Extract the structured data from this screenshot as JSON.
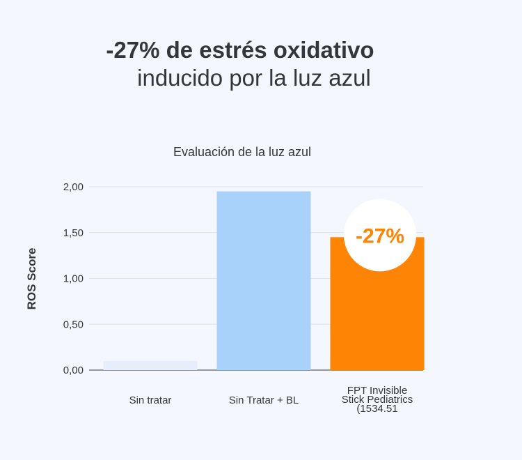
{
  "headline": {
    "line1": "-27% de estrés oxidativo",
    "line2": "inducido por la luz azul"
  },
  "colors": {
    "background": "#f4f7fd",
    "bar_untreated": "#e6eefb",
    "bar_bl": "#a9d2fb",
    "bar_product": "#fd8405",
    "badge_bg": "#ffffff"
  },
  "chart_data": {
    "type": "bar",
    "title": "Evaluación de la luz azul",
    "ylabel": "ROS Score",
    "xlabel": "",
    "ylim": [
      0,
      2
    ],
    "yticks": [
      "0,00",
      "0,50",
      "1,00",
      "1,50",
      "2,00"
    ],
    "ytick_values": [
      0,
      0.5,
      1.0,
      1.5,
      2.0
    ],
    "grid": true,
    "categories": [
      [
        "Sin tratar"
      ],
      [
        "Sin Tratar + BL"
      ],
      [
        "FPT Invisible",
        "Stick Pediatrics",
        "(1534.51"
      ]
    ],
    "values": [
      0.1,
      1.95,
      1.45
    ],
    "annotations": [
      {
        "category_index": 2,
        "text": "-27%"
      }
    ]
  }
}
